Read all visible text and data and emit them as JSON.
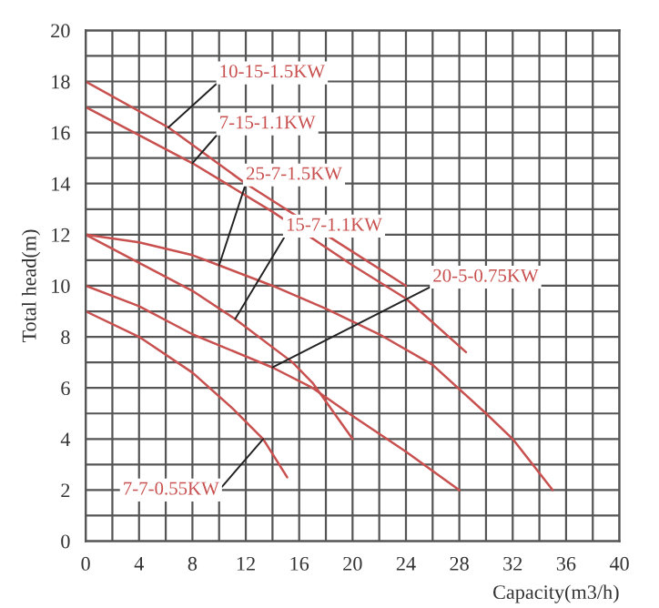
{
  "chart_data": {
    "type": "line",
    "xlabel": "Capacity(m3/h)",
    "ylabel": "Total head(m)",
    "xlim": [
      0,
      40
    ],
    "ylim": [
      0,
      20
    ],
    "xticks": [
      0,
      {
        "value": 2,
        "label": null
      },
      4,
      {
        "value": 6,
        "label": null
      },
      8,
      {
        "value": 10,
        "label": null
      },
      12,
      {
        "value": 14,
        "label": null
      },
      16,
      {
        "value": 18,
        "label": null
      },
      20,
      {
        "value": 22,
        "label": null
      },
      24,
      {
        "value": 26,
        "label": null
      },
      28,
      {
        "value": 30,
        "label": null
      },
      32,
      {
        "value": 34,
        "label": null
      },
      36,
      {
        "value": 38,
        "label": null
      },
      40
    ],
    "yticks": [
      0,
      {
        "value": 1,
        "label": null
      },
      2,
      {
        "value": 3,
        "label": null
      },
      4,
      {
        "value": 5,
        "label": null
      },
      6,
      {
        "value": 7,
        "label": null
      },
      8,
      {
        "value": 9,
        "label": null
      },
      10,
      {
        "value": 11,
        "label": null
      },
      12,
      {
        "value": 13,
        "label": null
      },
      14,
      {
        "value": 15,
        "label": null
      },
      16,
      {
        "value": 17,
        "label": null
      },
      18,
      {
        "value": 19,
        "label": null
      },
      20
    ],
    "grid": true,
    "legend": false,
    "marker": "none",
    "line_style": "solid",
    "series": [
      {
        "color": "#c8504f",
        "x": [
          0,
          6.2,
          12,
          18,
          24
        ],
        "values": [
          18,
          16.2,
          14,
          12,
          10
        ]
      },
      {
        "color": "#c8504f",
        "x": [
          0,
          8,
          14,
          20,
          24,
          28.5
        ],
        "values": [
          17,
          14.8,
          12.9,
          10.8,
          9.5,
          7.4
        ]
      },
      {
        "color": "#c8504f",
        "x": [
          0,
          4,
          8,
          10,
          14,
          18,
          22,
          26,
          30,
          32,
          35
        ],
        "values": [
          12,
          11.7,
          11.2,
          10.8,
          10,
          9.1,
          8.1,
          6.9,
          5,
          4,
          2
        ]
      },
      {
        "color": "#c8504f",
        "x": [
          0,
          8,
          11.2,
          15.5,
          17,
          20
        ],
        "values": [
          12,
          9.8,
          8.7,
          7,
          6.2,
          4
        ]
      },
      {
        "color": "#c8504f",
        "x": [
          0,
          4,
          8,
          14,
          17,
          20,
          24,
          28
        ],
        "values": [
          10,
          9.2,
          8.1,
          6.8,
          6,
          4.9,
          3.5,
          2
        ]
      },
      {
        "color": "#c8504f",
        "x": [
          0,
          4,
          8,
          11,
          13.3,
          15.1
        ],
        "values": [
          9,
          8,
          6.6,
          5.2,
          4,
          2.5
        ]
      }
    ],
    "annotations": [
      {
        "text": "10-15-1.5KW",
        "x": 6.2,
        "y": 16.2
      },
      {
        "text": "7-15-1.1KW",
        "x": 8,
        "y": 14.8
      },
      {
        "text": "25-7-1.5KW",
        "x": 10,
        "y": 10.8
      },
      {
        "text": "15-7-1.1KW",
        "x": 11.2,
        "y": 8.7
      },
      {
        "text": "20-5-0.75KW",
        "x": 14,
        "y": 6.8
      },
      {
        "text": "7-7-0.55KW",
        "x": 13.3,
        "y": 4
      }
    ]
  }
}
